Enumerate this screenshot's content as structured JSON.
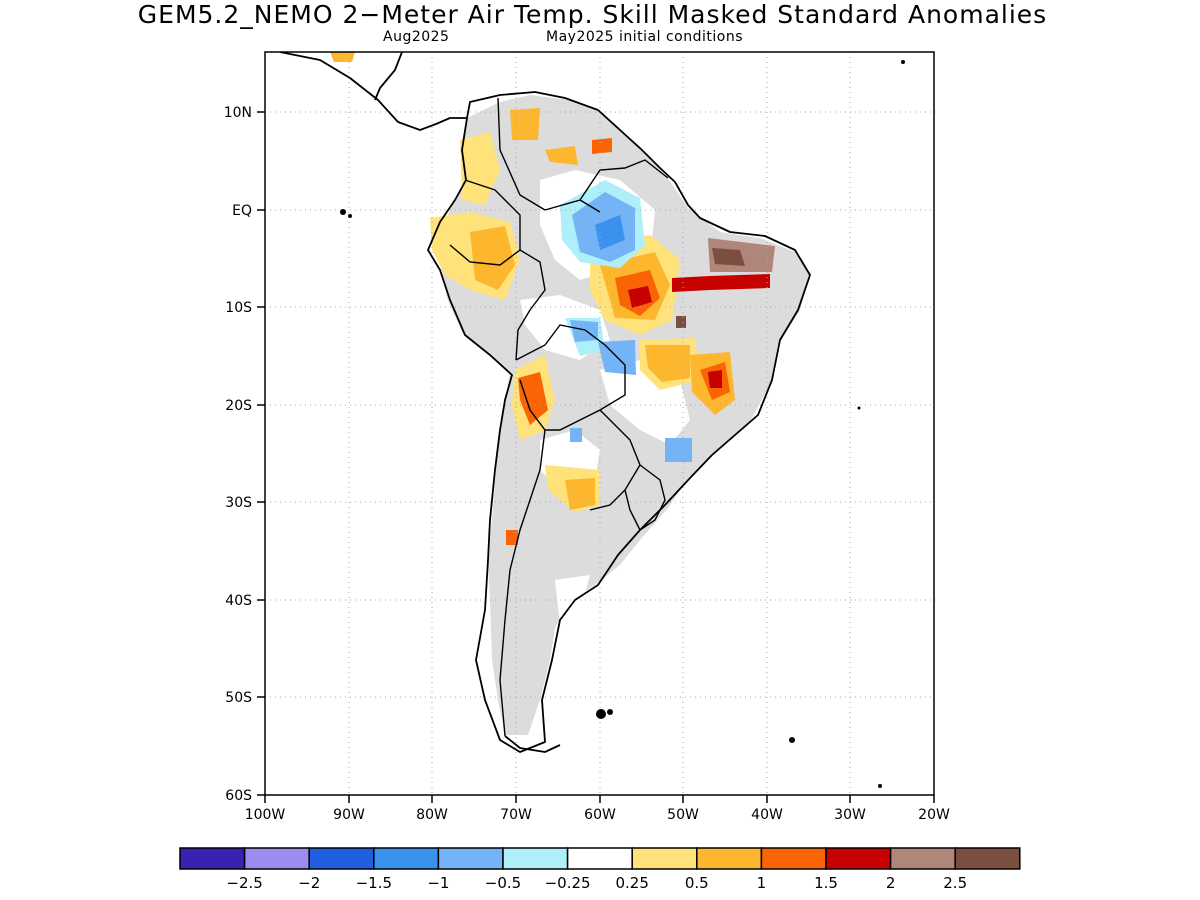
{
  "title": "GEM5.2_NEMO 2−Meter Air Temp. Skill Masked Standard Anomalies",
  "subtitle_left": "Aug2025",
  "subtitle_right": "May2025 initial conditions",
  "latitude_labels": [
    "10N",
    "EQ",
    "10S",
    "20S",
    "30S",
    "40S",
    "50S",
    "60S"
  ],
  "longitude_labels": [
    "100W",
    "90W",
    "80W",
    "70W",
    "60W",
    "50W",
    "40W",
    "30W",
    "20W"
  ],
  "colorbar": {
    "labels": [
      "−2.5",
      "−2",
      "−1.5",
      "−1",
      "−0.5",
      "−0.25",
      "0.25",
      "0.5",
      "1",
      "1.5",
      "2",
      "2.5"
    ],
    "colors": [
      "#3a22b0",
      "#9b8cf2",
      "#1f5fe0",
      "#3b92ee",
      "#74b4f6",
      "#aeeffa",
      "#ffffff",
      "#ffe27a",
      "#fdb72e",
      "#fb6405",
      "#c70000",
      "#b0857a",
      "#7a4f40"
    ]
  },
  "masked_color": "#dcdcdc"
}
